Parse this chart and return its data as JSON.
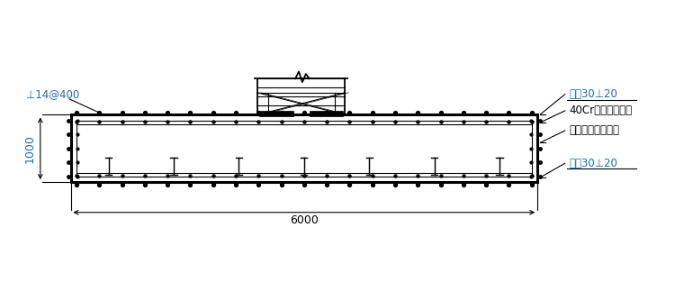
{
  "bg_color": "#ffffff",
  "line_color": "#000000",
  "dim_color": "#1a6bb5",
  "annotation_color": "#1a6bb5",
  "fig_width": 7.6,
  "fig_height": 3.23,
  "dpi": 100,
  "labels": {
    "rebar_top": "双垉30⊥20",
    "bolt": "40Cr塔吸专用螺栓",
    "plate": "塔吨专用定位钉板",
    "rebar_bot": "双垉30⊥20",
    "dim_14": "⊥14@400",
    "dim_1000": "1000",
    "dim_6000": "6000"
  }
}
